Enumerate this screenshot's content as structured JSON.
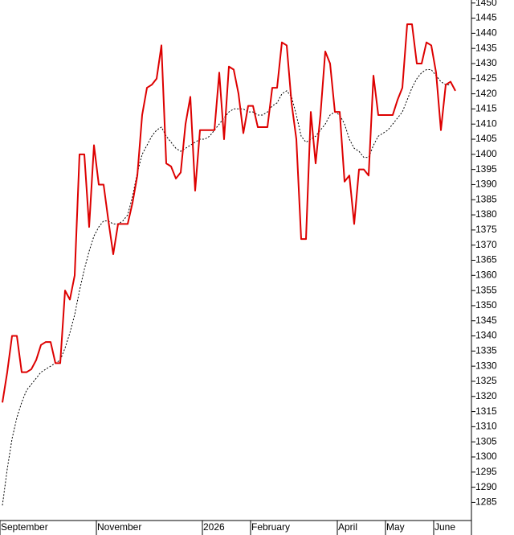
{
  "chart_data": {
    "type": "line",
    "categories": [
      "September",
      null,
      null,
      null,
      null,
      null,
      null,
      null,
      null,
      null,
      null,
      null,
      null,
      null,
      null,
      null,
      null,
      null,
      null,
      null,
      "November",
      null,
      null,
      null,
      null,
      null,
      null,
      null,
      null,
      null,
      null,
      null,
      null,
      null,
      null,
      null,
      null,
      null,
      null,
      null,
      null,
      null,
      "2026",
      null,
      null,
      null,
      null,
      null,
      null,
      null,
      null,
      null,
      "February",
      null,
      null,
      null,
      null,
      null,
      null,
      null,
      null,
      null,
      null,
      null,
      null,
      null,
      null,
      null,
      null,
      null,
      "April",
      null,
      null,
      null,
      null,
      null,
      null,
      null,
      null,
      null,
      "May",
      null,
      null,
      null,
      null,
      null,
      null,
      null,
      null,
      null,
      "June",
      null,
      null,
      null,
      null
    ],
    "series": [
      {
        "color": "#dd0000",
        "linestyle": "solid",
        "values": [
          1318,
          1328,
          1340,
          1340,
          1328,
          1328,
          1329,
          1332,
          1337,
          1338,
          1338,
          1331,
          1331,
          1355,
          1352,
          1360,
          1400,
          1400,
          1376,
          1403,
          1390,
          1390,
          1378,
          1367,
          1377,
          1377,
          1377,
          1384,
          1393,
          1413,
          1422,
          1423,
          1425,
          1436,
          1397,
          1396,
          1392,
          1394,
          1410,
          1419,
          1388,
          1408,
          1408,
          1408,
          1408,
          1427,
          1405,
          1429,
          1428,
          1420,
          1407,
          1416,
          1416,
          1409,
          1409,
          1409,
          1422,
          1422,
          1437,
          1436,
          1417,
          1405,
          1372,
          1372,
          1414,
          1397,
          1413,
          1434,
          1430,
          1414,
          1414,
          1391,
          1393,
          1377,
          1395,
          1395,
          1393,
          1426,
          1413,
          1413,
          1413,
          1413,
          1418,
          1422,
          1443,
          1443,
          1430,
          1430,
          1437,
          1436,
          1427,
          1408,
          1423,
          1424,
          1421
        ]
      },
      {
        "color": "#000000",
        "linestyle": "dotted",
        "values": [
          1284,
          1296,
          1306,
          1313,
          1318,
          1322,
          1324,
          1326,
          1328,
          1329,
          1330,
          1331,
          1332,
          1336,
          1341,
          1347,
          1355,
          1362,
          1368,
          1373,
          1376,
          1378,
          1378,
          1377,
          1377,
          1378,
          1380,
          1386,
          1394,
          1400,
          1403,
          1406,
          1408,
          1409,
          1406,
          1404,
          1402,
          1401,
          1402,
          1403,
          1404,
          1405,
          1405,
          1406,
          1408,
          1410,
          1412,
          1414,
          1415,
          1415,
          1415,
          1414,
          1414,
          1413,
          1413,
          1414,
          1416,
          1417,
          1420,
          1421,
          1419,
          1413,
          1406,
          1404,
          1405,
          1406,
          1408,
          1410,
          1413,
          1414,
          1413,
          1410,
          1405,
          1402,
          1401,
          1399,
          1399,
          1403,
          1406,
          1407,
          1408,
          1410,
          1412,
          1414,
          1418,
          1422,
          1425,
          1427,
          1428,
          1428,
          1426,
          1424,
          1423,
          1423,
          null
        ]
      }
    ],
    "ylim": [
      1279,
      1451
    ],
    "yticks": [
      1285,
      1290,
      1295,
      1300,
      1305,
      1310,
      1315,
      1320,
      1325,
      1330,
      1335,
      1340,
      1345,
      1350,
      1355,
      1360,
      1365,
      1370,
      1375,
      1380,
      1385,
      1390,
      1395,
      1400,
      1405,
      1410,
      1415,
      1420,
      1425,
      1430,
      1435,
      1440,
      1445,
      1450
    ],
    "grid": false
  }
}
